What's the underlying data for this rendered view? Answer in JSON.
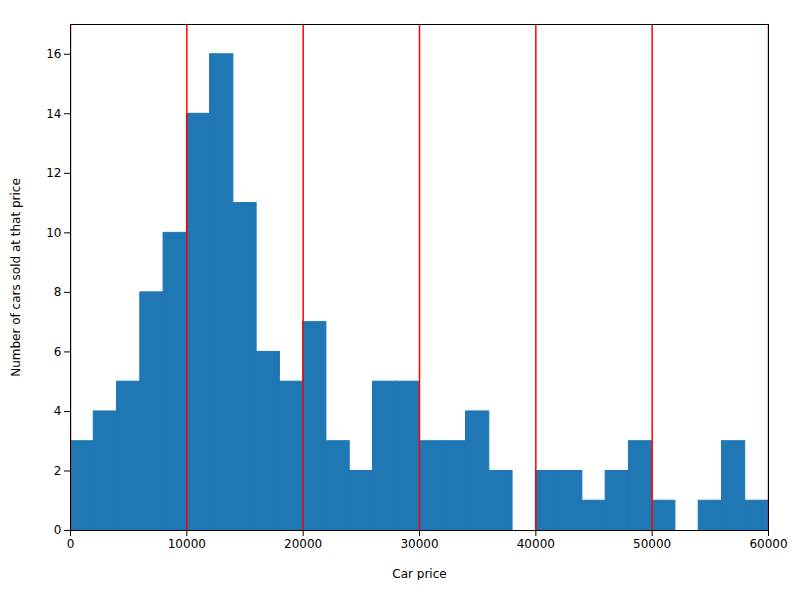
{
  "chart_data": {
    "type": "histogram",
    "xlabel": "Car price",
    "ylabel": "Number of cars sold at that price",
    "bins": [
      0,
      2000,
      4000,
      6000,
      8000,
      10000,
      12000,
      14000,
      16000,
      18000,
      20000,
      22000,
      24000,
      26000,
      28000,
      30000,
      32000,
      34000,
      36000,
      38000,
      40000,
      42000,
      44000,
      46000,
      48000,
      50000,
      52000,
      54000,
      56000,
      58000,
      60000
    ],
    "values": [
      3,
      4,
      5,
      8,
      10,
      14,
      16,
      11,
      6,
      5,
      7,
      3,
      2,
      5,
      5,
      3,
      3,
      4,
      2,
      0,
      2,
      2,
      1,
      2,
      3,
      1,
      0,
      1,
      3,
      1
    ],
    "color": "#1f77b4",
    "vlines": {
      "values": [
        0,
        10000,
        20000,
        30000,
        40000,
        50000,
        60000
      ],
      "color": "red"
    },
    "xlim": [
      0,
      60000
    ],
    "ylim": [
      0,
      17
    ],
    "xticks": [
      0,
      10000,
      20000,
      30000,
      40000,
      50000,
      60000
    ],
    "yticks": [
      0,
      2,
      4,
      6,
      8,
      10,
      12,
      14,
      16
    ]
  }
}
